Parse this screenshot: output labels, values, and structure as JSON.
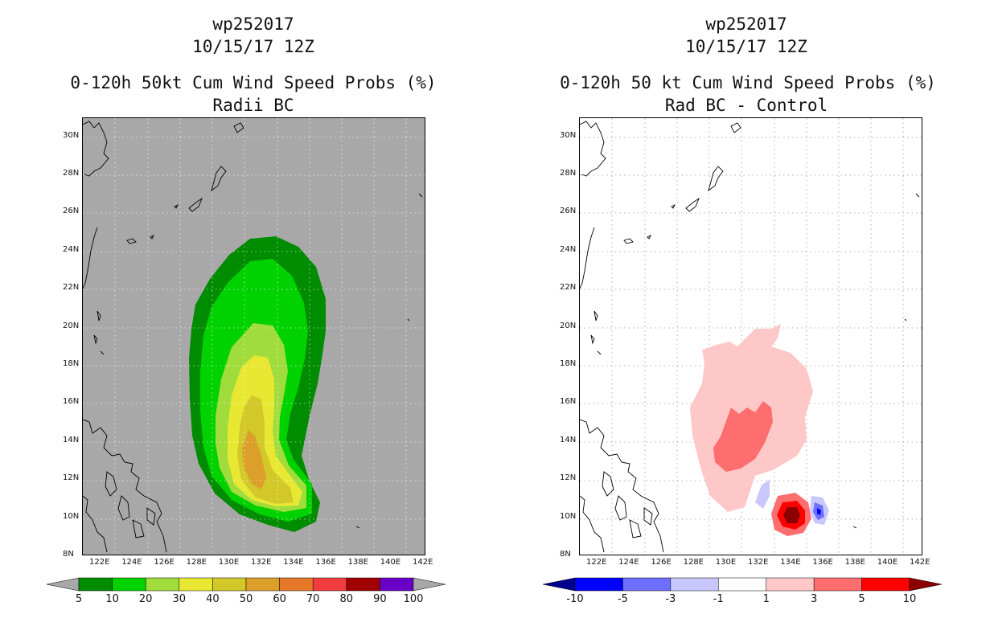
{
  "left": {
    "storm_id": "wp252017",
    "date": "10/15/17 12Z",
    "title": "0-120h 50kt Cum Wind Speed Probs (%)",
    "subtitle": "Radii BC",
    "colorbar_labels": [
      "5",
      "10",
      "20",
      "30",
      "40",
      "50",
      "60",
      "70",
      "80",
      "90",
      "100"
    ],
    "colorbar_colors": [
      "#008c00",
      "#00d200",
      "#a0dc3c",
      "#e8e832",
      "#d2c82a",
      "#dca02a",
      "#e6782a",
      "#f03c3c",
      "#a00000",
      "#6a00c8"
    ],
    "background_color": "#a8a8a8"
  },
  "right": {
    "storm_id": "wp252017",
    "date": "10/15/17 12Z",
    "title": "0-120h 50 kt Cum Wind Speed Probs (%)",
    "subtitle": "Rad BC - Control",
    "colorbar_labels": [
      "-10",
      "-5",
      "-3",
      "-1",
      "1",
      "3",
      "5",
      "10"
    ],
    "colorbar_colors": [
      "#0000ff",
      "#6e6eff",
      "#c8c8ff",
      "#ffffff",
      "#ffc8c8",
      "#ff6e6e",
      "#ff0000"
    ],
    "colorbar_end_low": "#00008c",
    "colorbar_end_high": "#8c0000"
  },
  "axes": {
    "lon_labels": [
      "122E",
      "124E",
      "126E",
      "128E",
      "130E",
      "132E",
      "134E",
      "136E",
      "138E",
      "140E",
      "142E"
    ],
    "lat_labels": [
      "8N",
      "10N",
      "12N",
      "14N",
      "16N",
      "18N",
      "20N",
      "22N",
      "24N",
      "26N",
      "28N",
      "30N"
    ]
  }
}
